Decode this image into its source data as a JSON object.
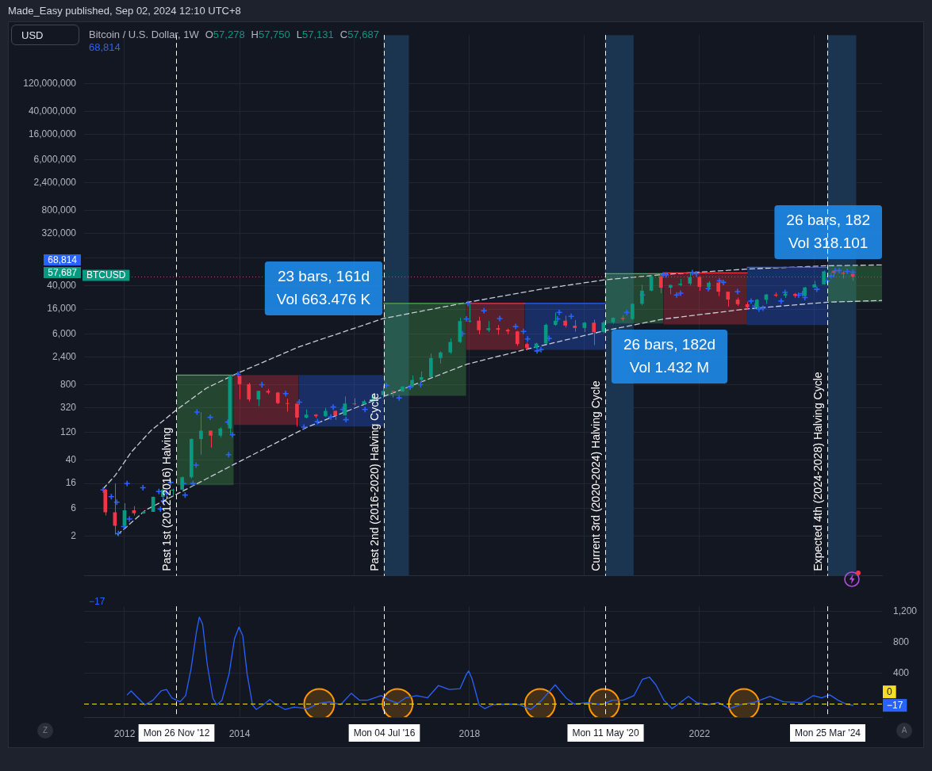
{
  "chart_data": [
    {
      "type": "candlestick",
      "title": "Bitcoin / U.S. Dollar, 1W",
      "annotations": [
        "Made_Easy published, Sep 02, 2024 12:10 UTC+8",
        "USD",
        "O57,278 H57,750 L57,131 C57,687",
        "68,814",
        "23 bars, 161d\nVol 663.476 K",
        "26 bars, 182d\nVol 1.432 M",
        "26 bars, 182\nVol 318.101",
        "68,814",
        "57,687"
      ],
      "x": [
        "2011-09-01",
        "2011-11-01",
        "2012-01-01",
        "2012-03-01",
        "2012-05-01",
        "2012-07-01",
        "2012-09-01",
        "2012-11-01",
        "2013-01-01",
        "2013-03-01",
        "2013-05-01",
        "2013-07-01",
        "2013-09-01",
        "2013-11-01",
        "2014-01-01",
        "2014-03-01",
        "2014-05-01",
        "2014-07-01",
        "2014-09-01",
        "2014-11-01",
        "2015-01-01",
        "2015-03-01",
        "2015-05-01",
        "2015-07-01",
        "2015-09-01",
        "2015-11-01",
        "2016-01-01",
        "2016-03-01",
        "2016-05-01",
        "2016-07-01",
        "2016-09-01",
        "2016-11-01",
        "2017-01-01",
        "2017-03-01",
        "2017-05-01",
        "2017-07-01",
        "2017-09-01",
        "2017-11-01",
        "2018-01-01",
        "2018-03-01",
        "2018-05-01",
        "2018-07-01",
        "2018-09-01",
        "2018-11-01",
        "2019-01-01",
        "2019-03-01",
        "2019-05-01",
        "2019-07-01",
        "2019-09-01",
        "2019-11-01",
        "2020-01-01",
        "2020-03-01",
        "2020-05-01",
        "2020-07-01",
        "2020-09-01",
        "2020-11-01",
        "2021-01-01",
        "2021-03-01",
        "2021-05-01",
        "2021-07-01",
        "2021-09-01",
        "2021-11-01",
        "2022-01-01",
        "2022-03-01",
        "2022-05-01",
        "2022-07-01",
        "2022-09-01",
        "2022-11-01",
        "2023-01-01",
        "2023-03-01",
        "2023-05-01",
        "2023-07-01",
        "2023-09-01",
        "2023-11-01",
        "2024-01-01",
        "2024-03-01",
        "2024-05-01",
        "2024-07-01",
        "2024-09-01"
      ],
      "ohlc": [
        [
          12.5,
          13,
          4.5,
          5.1
        ],
        [
          5.1,
          16,
          2.1,
          3.0
        ],
        [
          3.0,
          7.3,
          2.8,
          5.5
        ],
        [
          5.5,
          6.5,
          4.5,
          4.9
        ],
        [
          4.9,
          5.4,
          4.8,
          5.2
        ],
        [
          5.2,
          9.5,
          5.2,
          9.4
        ],
        [
          9.4,
          16,
          7.8,
          12.4
        ],
        [
          12.4,
          13,
          10,
          12.5
        ],
        [
          12.5,
          21,
          12.5,
          20.4
        ],
        [
          20.4,
          95,
          19.5,
          93
        ],
        [
          93,
          270,
          50,
          129
        ],
        [
          129,
          130,
          66,
          106
        ],
        [
          106,
          150,
          98,
          141
        ],
        [
          141,
          1163,
          115,
          1130
        ],
        [
          1130,
          1150,
          450,
          815
        ],
        [
          815,
          860,
          410,
          445
        ],
        [
          445,
          630,
          340,
          625
        ],
        [
          625,
          680,
          550,
          585
        ],
        [
          585,
          600,
          370,
          385
        ],
        [
          385,
          460,
          275,
          375
        ],
        [
          375,
          385,
          152,
          218
        ],
        [
          218,
          300,
          210,
          244
        ],
        [
          244,
          250,
          214,
          230
        ],
        [
          230,
          320,
          222,
          284
        ],
        [
          284,
          285,
          198,
          236
        ],
        [
          236,
          502,
          236,
          378
        ],
        [
          378,
          465,
          350,
          368
        ],
        [
          368,
          440,
          365,
          416
        ],
        [
          416,
          550,
          415,
          530
        ],
        [
          530,
          765,
          465,
          624
        ],
        [
          624,
          627,
          480,
          609
        ],
        [
          609,
          755,
          605,
          742
        ],
        [
          742,
          1150,
          740,
          965
        ],
        [
          965,
          1350,
          890,
          1080
        ],
        [
          1080,
          2760,
          1060,
          2300
        ],
        [
          2300,
          3000,
          1840,
          2870
        ],
        [
          2870,
          5000,
          2700,
          4340
        ],
        [
          4340,
          11400,
          4160,
          9950
        ],
        [
          9950,
          19700,
          9400,
          10100
        ],
        [
          10100,
          11800,
          5900,
          6930
        ],
        [
          6930,
          9950,
          6430,
          7500
        ],
        [
          7500,
          8500,
          5780,
          7030
        ],
        [
          7030,
          7400,
          5880,
          6600
        ],
        [
          6600,
          6750,
          3700,
          4000
        ],
        [
          4000,
          4250,
          3120,
          3440
        ],
        [
          3440,
          4200,
          3370,
          4100
        ],
        [
          4100,
          9000,
          4070,
          8550
        ],
        [
          8550,
          13880,
          8250,
          10090
        ],
        [
          10090,
          12300,
          7700,
          8300
        ],
        [
          8300,
          10350,
          6540,
          7550
        ],
        [
          7550,
          9600,
          6430,
          9350
        ],
        [
          9350,
          10500,
          3850,
          6420
        ],
        [
          6420,
          10070,
          6150,
          9450
        ],
        [
          9450,
          11450,
          8900,
          11350
        ],
        [
          11350,
          12480,
          9820,
          10780
        ],
        [
          10780,
          19900,
          10400,
          19700
        ],
        [
          19700,
          41950,
          18700,
          33100
        ],
        [
          33100,
          61800,
          32300,
          58800
        ],
        [
          58800,
          64900,
          30000,
          37300
        ],
        [
          37300,
          42000,
          28800,
          41500
        ],
        [
          41500,
          52900,
          39600,
          43800
        ],
        [
          43800,
          69000,
          40600,
          57000
        ],
        [
          57000,
          59100,
          32950,
          38500
        ],
        [
          38500,
          48200,
          34300,
          45500
        ],
        [
          45500,
          47400,
          26700,
          31800
        ],
        [
          31800,
          31900,
          17600,
          23300
        ],
        [
          23300,
          25200,
          18150,
          19400
        ],
        [
          19400,
          21480,
          15480,
          17150
        ],
        [
          17150,
          23950,
          16250,
          23120
        ],
        [
          23120,
          29200,
          19600,
          28450
        ],
        [
          28450,
          31000,
          25800,
          27200
        ],
        [
          27200,
          31800,
          24800,
          29200
        ],
        [
          29200,
          30200,
          24900,
          26960
        ],
        [
          26960,
          38400,
          26550,
          37700
        ],
        [
          37700,
          48900,
          37600,
          42500
        ],
        [
          42500,
          73800,
          41900,
          71300
        ],
        [
          71300,
          72700,
          56500,
          67500
        ],
        [
          67500,
          72000,
          53500,
          64600
        ],
        [
          64600,
          65600,
          49000,
          57687
        ]
      ],
      "colors": [
        "#f23645",
        "#f23645",
        "#089981",
        "#f23645",
        "#089981",
        "#089981",
        "#089981",
        "#089981",
        "#089981",
        "#089981",
        "#089981",
        "#f23645",
        "#089981",
        "#089981",
        "#f23645",
        "#f23645",
        "#089981",
        "#f23645",
        "#f23645",
        "#f23645",
        "#f23645",
        "#089981",
        "#f23645",
        "#089981",
        "#f23645",
        "#089981",
        "#f23645",
        "#089981",
        "#089981",
        "#089981",
        "#f23645",
        "#089981",
        "#089981",
        "#089981",
        "#089981",
        "#089981",
        "#089981",
        "#089981",
        "#089981",
        "#f23645",
        "#089981",
        "#f23645",
        "#f23645",
        "#f23645",
        "#f23645",
        "#089981",
        "#089981",
        "#089981",
        "#f23645",
        "#f23645",
        "#089981",
        "#f23645",
        "#089981",
        "#089981",
        "#f23645",
        "#089981",
        "#089981",
        "#089981",
        "#f23645",
        "#089981",
        "#089981",
        "#089981",
        "#f23645",
        "#089981",
        "#f23645",
        "#f23645",
        "#f23645",
        "#f23645",
        "#089981",
        "#089981",
        "#f23645",
        "#089981",
        "#f23645",
        "#089981",
        "#089981",
        "#089981",
        "#f23645",
        "#f23645",
        "#f23645"
      ],
      "series": [
        {
          "type": "line",
          "color": "#4caf50",
          "marker": "none",
          "x": [
            "2012-11-26",
            "2013-11-25"
          ],
          "values": [
            1170,
            1170
          ],
          "lower": [
            15,
            15
          ],
          "upper": [
            1170,
            1170
          ]
        },
        {
          "type": "line",
          "color": "#f23645",
          "marker": "none",
          "x": [
            "2013-11-25",
            "2015-01-12"
          ],
          "values": [
            null,
            null
          ],
          "lower": [
            163,
            163
          ],
          "upper": [
            1170,
            1170
          ]
        },
        {
          "type": "line",
          "color": "#2962ff",
          "marker": "none",
          "x": [
            "2015-01-12",
            "2016-07-04"
          ],
          "values": [
            null,
            null
          ],
          "lower": [
            152,
            152
          ],
          "upper": [
            1170,
            1170
          ]
        },
        {
          "type": "line",
          "color": "#4caf50",
          "marker": "none",
          "x": [
            "2016-07-04",
            "2017-12-11"
          ],
          "values": [
            20000,
            20000
          ],
          "lower": [
            514,
            514
          ],
          "upper": [
            20000,
            20000
          ]
        },
        {
          "type": "line",
          "color": "#f23645",
          "marker": "none",
          "x": [
            "2017-12-11",
            "2018-12-17"
          ],
          "values": [
            20000,
            20000
          ],
          "lower": [
            3180,
            3180
          ],
          "upper": [
            20000,
            20000
          ]
        },
        {
          "type": "line",
          "color": "#2962ff",
          "marker": "none",
          "x": [
            "2018-12-17",
            "2020-05-11"
          ],
          "values": [
            20000,
            20000
          ],
          "lower": [
            3180,
            3180
          ],
          "upper": [
            20000,
            20000
          ]
        },
        {
          "type": "line",
          "color": "#4caf50",
          "marker": "none",
          "x": [
            "2020-05-11",
            "2021-05-17"
          ],
          "values": [
            65000,
            65000
          ],
          "lower": [
            9000,
            9000
          ],
          "upper": [
            65000,
            65000
          ]
        },
        {
          "type": "line",
          "color": "#f23645",
          "marker": "none",
          "x": [
            "2021-05-17",
            "2022-10-31"
          ],
          "values": [
            67000,
            67000
          ],
          "lower": [
            8700,
            8700
          ],
          "upper": [
            67000,
            67000
          ]
        },
        {
          "type": "line",
          "color": "#2962ff",
          "marker": "none",
          "x": [
            "2022-10-31",
            "2024-03-25"
          ],
          "values": [
            83500,
            83500
          ],
          "lower": [
            8500,
            8500
          ],
          "upper": [
            83500,
            83500
          ]
        },
        {
          "type": "line",
          "color": "#4caf50",
          "marker": "none",
          "x": [
            "2024-03-25",
            "2025-03-06"
          ],
          "values": [
            null,
            null
          ],
          "lower": [
            21000,
            21000
          ],
          "upper": [
            88500,
            88500
          ]
        },
        {
          "type": "line",
          "color": "#c8ccd6",
          "line_style": "dashed",
          "marker": "none",
          "x": [
            "2011-08-19",
            "2011-11-03",
            "2012-02-12",
            "2012-06-17",
            "2012-11-30",
            "2013-06-05",
            "2013-12-22",
            "2015-01-15",
            "2016-07-02",
            "2017-12-11",
            "2019-04-23",
            "2020-05-10",
            "2021-05-19",
            "2022-10-30",
            "2024-03-25",
            "2025-03-06"
          ],
          "values": [
            13,
            22,
            55,
            130,
            300,
            700,
            1270,
            3600,
            11000,
            20700,
            36000,
            51000,
            63000,
            78000,
            89000,
            92000
          ]
        },
        {
          "type": "line",
          "color": "#c8ccd6",
          "line_style": "dashed",
          "marker": "none",
          "x": [
            "2011-11-18",
            "2012-05-15",
            "2013-01-21",
            "2013-12-22",
            "2015-03-07",
            "2016-07-04",
            "2017-12-15",
            "2018-12-17",
            "2020-05-11",
            "2021-05-19",
            "2022-10-30",
            "2024-03-25",
            "2025-03-06"
          ],
          "values": [
            2.1,
            5.6,
            12.4,
            37,
            149,
            500,
            1800,
            3200,
            6800,
            10800,
            16100,
            21000,
            22500
          ]
        },
        {
          "type": "scatter",
          "color": "#2962ff",
          "marker": "cross",
          "x": [
            "2011-08-19",
            "2011-10-09",
            "2011-11-13",
            "2011-11-23",
            "2011-12-28",
            "2012-02-01",
            "2012-01-17",
            "2012-04-27",
            "2012-08-06",
            "2012-08-16",
            "2012-09-05",
            "2012-09-25",
            "2012-10-20",
            "2013-01-10",
            "2013-01-20",
            "2013-03-11",
            "2013-03-31",
            "2013-04-05",
            "2013-06-29",
            "2013-10-18",
            "2013-10-23",
            "2013-11-17",
            "2013-12-22",
            "2014-05-23",
            "2014-10-21",
            "2015-01-15",
            "2015-02-14",
            "2015-05-11",
            "2015-08-04",
            "2015-08-19",
            "2015-10-19",
            "2015-11-08",
            "2016-03-08",
            "2016-07-22",
            "2016-12-20",
            "2016-10-11",
            "2017-02-24",
            "2017-11-17",
            "2017-12-12",
            "2017-12-22",
            "2018-04-03",
            "2018-07-12",
            "2018-10-21",
            "2018-12-10",
            "2019-01-05",
            "2019-03-06",
            "2019-03-31",
            "2019-05-21",
            "2019-07-15",
            "2019-07-25",
            "2019-10-09",
            "2020-09-26",
            "2021-01-04",
            "2021-05-15",
            "2021-06-04",
            "2021-08-09",
            "2021-09-03",
            "2021-11-17",
            "2021-12-12",
            "2022-02-26",
            "2022-05-08",
            "2022-06-02",
            "2022-08-31",
            "2022-11-25",
            "2022-12-20",
            "2023-01-14",
            "2023-02-08",
            "2023-06-04",
            "2023-09-23",
            "2023-06-29",
            "2023-10-18",
            "2023-11-02",
            "2024-01-17",
            "2024-03-22",
            "2024-04-16",
            "2024-05-12",
            "2024-06-06",
            "2024-07-27",
            "2024-09-02"
          ],
          "values": [
            12.4,
            9.5,
            7.6,
            2.2,
            2.9,
            3.9,
            15.9,
            13.5,
            11.6,
            5.8,
            8,
            11,
            16.6,
            16,
            10.1,
            16,
            33,
            271,
            220,
            182,
            50,
            110,
            1210,
            800,
            560,
            400,
            149,
            185,
            222,
            330,
            300,
            200,
            300,
            780,
            720,
            474,
            800,
            6000,
            10800,
            20000,
            15000,
            11000,
            8000,
            6600,
            4900,
            3050,
            3200,
            5000,
            10800,
            14000,
            12000,
            14000,
            28000,
            62000,
            62000,
            28000,
            30000,
            68000,
            65000,
            36000,
            49000,
            46000,
            32000,
            22000,
            18000,
            16000,
            16500,
            22000,
            27800,
            31000,
            29500,
            25300,
            35000,
            48800,
            60000,
            73000,
            73700,
            71000,
            68814
          ]
        }
      ],
      "xlim": [
        "2011-04-19",
        "2025-03-06"
      ],
      "xticks": [
        "2012",
        "2014",
        {
          "value": "2016",
          "label": null
        },
        "2018",
        {
          "value": "2020",
          "label": null
        },
        "2022",
        {
          "value": "2024",
          "label": null
        }
      ],
      "ylim": [
        0.41,
        830000000
      ],
      "yticks": [
        2,
        6,
        16,
        40,
        120,
        320,
        800,
        {
          "value": 2400,
          "label": "2,400"
        },
        {
          "value": 6000,
          "label": "6,000"
        },
        {
          "value": 16000,
          "label": "16,000"
        },
        {
          "value": 40000,
          "label": "40,000"
        },
        {
          "value": 120000,
          "label": null
        },
        {
          "value": 320000,
          "label": "320,000"
        },
        {
          "value": 800000,
          "label": "800,000"
        },
        {
          "value": 2400000,
          "label": "2,400,000"
        },
        {
          "value": 6000000,
          "label": "6,000,000"
        },
        {
          "value": 16000000,
          "label": "16,000,000"
        },
        {
          "value": 40000000,
          "label": "40,000,000"
        },
        {
          "value": 120000000,
          "label": "120,000,000"
        }
      ],
      "log": true,
      "grid": true,
      "tick_labels": "y",
      "ref_lines": [
        {
          "axis": "x",
          "value": "2012-11-26",
          "label": "Past 1st (2012-2016) Halving",
          "color": "#ffffff",
          "line_style": "dashed"
        },
        {
          "axis": "x",
          "value": "2016-07-04",
          "label": "Past 2nd (2016-2020) Halving Cycle",
          "color": "#ffffff",
          "line_style": "dashed"
        },
        {
          "axis": "x",
          "value": "2020-05-11",
          "label": "Current 3rd (2020-2024) Halving Cycle",
          "color": "#ffffff",
          "line_style": "dashed"
        },
        {
          "axis": "x",
          "value": "2024-03-25",
          "label": "Expected 4th (2024-2028) Halving Cycle",
          "color": "#ffffff",
          "line_style": "dashed"
        },
        {
          "axis": "y",
          "value": 57687,
          "label": "BTCUSD",
          "color": "#089981",
          "line_style": "dotted"
        }
      ],
      "bands": [
        {
          "axis": "x",
          "from": "2016-07-04",
          "to": "2016-12-12",
          "color": "#1b3550"
        },
        {
          "axis": "x",
          "from": "2020-05-11",
          "to": "2020-11-09",
          "color": "#1b3550"
        },
        {
          "axis": "x",
          "from": "2024-03-25",
          "to": "2024-09-23",
          "color": "#1b3550"
        }
      ]
    },
    {
      "type": "line",
      "x": [
        "2012-01-18",
        "2012-02-12",
        "2012-03-11",
        "2012-05-09",
        "2012-06-30",
        "2012-08-20",
        "2012-09-24",
        "2012-10-28",
        "2012-12-19",
        "2013-01-23",
        "2013-02-26",
        "2013-04-03",
        "2013-04-20",
        "2013-05-11",
        "2013-06-10",
        "2013-07-15",
        "2013-08-08",
        "2013-09-11",
        "2013-10-26",
        "2013-11-30",
        "2013-12-28",
        "2014-01-21",
        "2014-02-18",
        "2014-03-24",
        "2014-04-17",
        "2014-06-01",
        "2014-07-12",
        "2014-08-22",
        "2014-10-17",
        "2014-12-14",
        "2015-03-11",
        "2015-05-19",
        "2015-07-27",
        "2015-10-04",
        "2015-12-12",
        "2016-02-02",
        "2016-03-25",
        "2016-06-19",
        "2016-08-10",
        "2016-10-01",
        "2016-11-22",
        "2017-01-30",
        "2017-04-09",
        "2017-06-17",
        "2017-08-25",
        "2017-11-02",
        "2017-12-13",
        "2017-12-27",
        "2018-01-17",
        "2018-03-03",
        "2018-04-07",
        "2018-05-28",
        "2018-09-09",
        "2018-11-16",
        "2019-01-25",
        "2019-04-05",
        "2019-06-29",
        "2019-09-06",
        "2019-10-28",
        "2020-01-23",
        "2020-04-19",
        "2020-06-26",
        "2020-09-03",
        "2020-11-11",
        "2021-01-03",
        "2021-02-17",
        "2021-03-30",
        "2021-05-20",
        "2021-07-11",
        "2021-09-02",
        "2021-10-23",
        "2021-12-13",
        "2022-02-21",
        "2022-05-01",
        "2022-07-09",
        "2022-09-16",
        "2022-12-11",
        "2023-03-25",
        "2023-06-19",
        "2023-10-17",
        "2023-12-26",
        "2024-02-16",
        "2024-04-08",
        "2024-05-30",
        "2024-07-20",
        "2024-09-02"
      ],
      "series": [
        {
          "color": "#2962ff",
          "values": [
            120,
            170,
            110,
            -10,
            50,
            170,
            190,
            80,
            30,
            110,
            450,
            950,
            1130,
            1040,
            510,
            80,
            -10,
            50,
            390,
            850,
            1000,
            890,
            390,
            -10,
            -70,
            -10,
            60,
            -10,
            -70,
            -40,
            -60,
            10,
            30,
            -10,
            140,
            50,
            50,
            110,
            50,
            10,
            80,
            110,
            80,
            240,
            190,
            200,
            390,
            430,
            330,
            -10,
            -60,
            -10,
            0,
            -10,
            -70,
            50,
            250,
            80,
            0,
            20,
            -10,
            50,
            50,
            110,
            320,
            350,
            250,
            50,
            -60,
            20,
            100,
            20,
            -10,
            20,
            -60,
            -10,
            20,
            100,
            30,
            20,
            110,
            80,
            120,
            50,
            0,
            -17
          ]
        },
        {
          "type": "scatter",
          "color": "#ff9800",
          "marker": "circle",
          "x": [
            "2015-05-22",
            "2016-10-01",
            "2019-03-25",
            "2020-05-05",
            "2022-10-10"
          ],
          "values": [
            0,
            0,
            0,
            0,
            0
          ]
        }
      ],
      "marker": "none",
      "xlim": [
        "2011-04-19",
        "2025-03-06"
      ],
      "xticks": [
        "2012",
        "2014",
        {
          "value": "2016",
          "label": null
        },
        "2018",
        {
          "value": "2020",
          "label": null
        },
        "2022",
        {
          "value": "2024",
          "label": null
        }
      ],
      "ylim": [
        -170,
        1270
      ],
      "yticks": [
        400,
        800,
        {
          "value": 1200,
          "label": "1,200"
        }
      ],
      "grid": true,
      "ref_lines": [
        {
          "axis": "x",
          "value": "2012-11-26",
          "label": "Mon 26 Nov '12",
          "color": "#ffffff",
          "line_style": "dashed"
        },
        {
          "axis": "x",
          "value": "2016-07-04",
          "label": "Mon 04 Jul '16",
          "color": "#ffffff",
          "line_style": "dashed"
        },
        {
          "axis": "x",
          "value": "2020-05-11",
          "label": "Mon 11 May '20",
          "color": "#ffffff",
          "line_style": "dashed"
        },
        {
          "axis": "x",
          "value": "2024-03-25",
          "label": "Mon 25 Mar '24",
          "color": "#ffffff",
          "line_style": "dashed"
        },
        {
          "axis": "y",
          "value": 0,
          "label": "0",
          "color": "#f5dd2a",
          "line_style": "dashed"
        }
      ],
      "annotations": [
        "−17",
        "Z",
        "A",
        {
          "text": "−17",
          "y": -17
        }
      ]
    }
  ]
}
